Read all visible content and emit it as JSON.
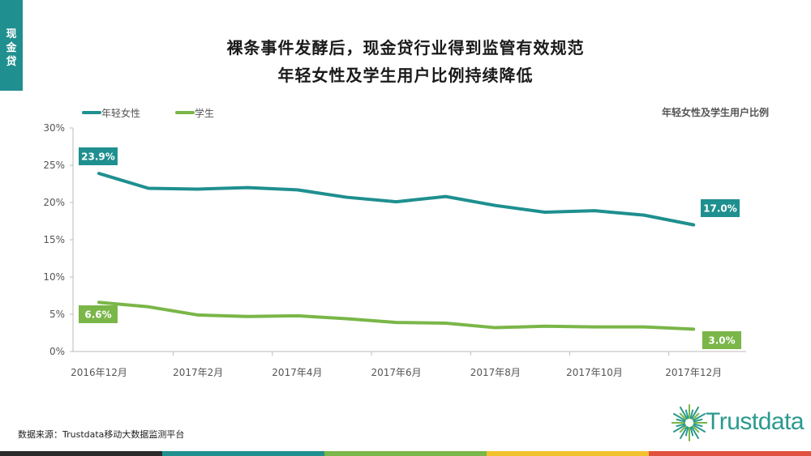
{
  "side_tab": [
    "现",
    "金",
    "贷"
  ],
  "title_line1": "裸条事件发酵后，现金贷行业得到监管有效规范",
  "title_line2": "年轻女性及学生用户比例持续降低",
  "chart_note": "年轻女性及学生用户比例",
  "source": "数据来源：Trustdata移动大数据监测平台",
  "logo": {
    "text": "Trustdata",
    "icon": "starburst-logo-icon"
  },
  "colors": {
    "teal": "#1f8f8f",
    "green": "#7ab648",
    "bottom_bar": [
      "#2a2a2a",
      "#1f8f8f",
      "#7ab648",
      "#f2c12e",
      "#e0523f"
    ]
  },
  "chart_data": {
    "type": "line",
    "ylim": [
      0,
      30
    ],
    "yticks": [
      "0%",
      "5%",
      "10%",
      "15%",
      "20%",
      "25%",
      "30%"
    ],
    "y_tick_values": [
      0,
      5,
      10,
      15,
      20,
      25,
      30
    ],
    "x_labels": [
      "2016年12月",
      "2017年2月",
      "2017年4月",
      "2017年6月",
      "2017年8月",
      "2017年10月",
      "2017年12月"
    ],
    "x_label_index": [
      0,
      2,
      4,
      6,
      8,
      10,
      12
    ],
    "n_points": 13,
    "legend_position": "top-left",
    "grid": false,
    "series": [
      {
        "name": "年轻女性",
        "color": "#1f8f8f",
        "values": [
          23.9,
          21.9,
          21.8,
          22.0,
          21.7,
          20.7,
          20.1,
          20.8,
          19.6,
          18.7,
          18.9,
          18.3,
          17.0
        ],
        "end_labels": {
          "first": "23.9%",
          "last": "17.0%"
        }
      },
      {
        "name": "学生",
        "color": "#7ab648",
        "values": [
          6.6,
          6.0,
          4.9,
          4.7,
          4.8,
          4.4,
          3.9,
          3.8,
          3.2,
          3.4,
          3.3,
          3.3,
          3.0
        ],
        "end_labels": {
          "first": "6.6%",
          "last": "3.0%"
        }
      }
    ]
  }
}
